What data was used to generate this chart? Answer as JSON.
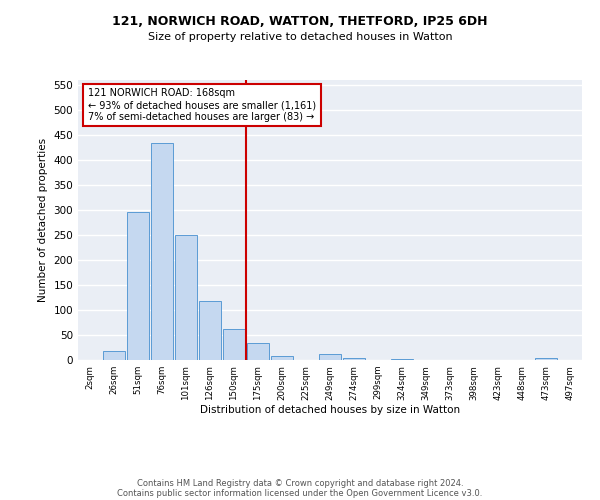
{
  "title1": "121, NORWICH ROAD, WATTON, THETFORD, IP25 6DH",
  "title2": "Size of property relative to detached houses in Watton",
  "xlabel": "Distribution of detached houses by size in Watton",
  "ylabel": "Number of detached properties",
  "categories": [
    "2sqm",
    "26sqm",
    "51sqm",
    "76sqm",
    "101sqm",
    "126sqm",
    "150sqm",
    "175sqm",
    "200sqm",
    "225sqm",
    "249sqm",
    "274sqm",
    "299sqm",
    "324sqm",
    "349sqm",
    "373sqm",
    "398sqm",
    "423sqm",
    "448sqm",
    "473sqm",
    "497sqm"
  ],
  "values": [
    0,
    18,
    297,
    435,
    250,
    119,
    63,
    35,
    8,
    0,
    12,
    5,
    0,
    3,
    0,
    0,
    0,
    0,
    0,
    5,
    0
  ],
  "bar_color": "#c5d8f0",
  "bar_edge_color": "#5b9bd5",
  "annotation_text": "121 NORWICH ROAD: 168sqm\n← 93% of detached houses are smaller (1,161)\n7% of semi-detached houses are larger (83) →",
  "annotation_box_color": "#ffffff",
  "annotation_box_edge": "#cc0000",
  "vline_color": "#cc0000",
  "ylim": [
    0,
    560
  ],
  "yticks": [
    0,
    50,
    100,
    150,
    200,
    250,
    300,
    350,
    400,
    450,
    500,
    550
  ],
  "bg_color": "#eaeef5",
  "grid_color": "#ffffff",
  "footer_line1": "Contains HM Land Registry data © Crown copyright and database right 2024.",
  "footer_line2": "Contains public sector information licensed under the Open Government Licence v3.0."
}
